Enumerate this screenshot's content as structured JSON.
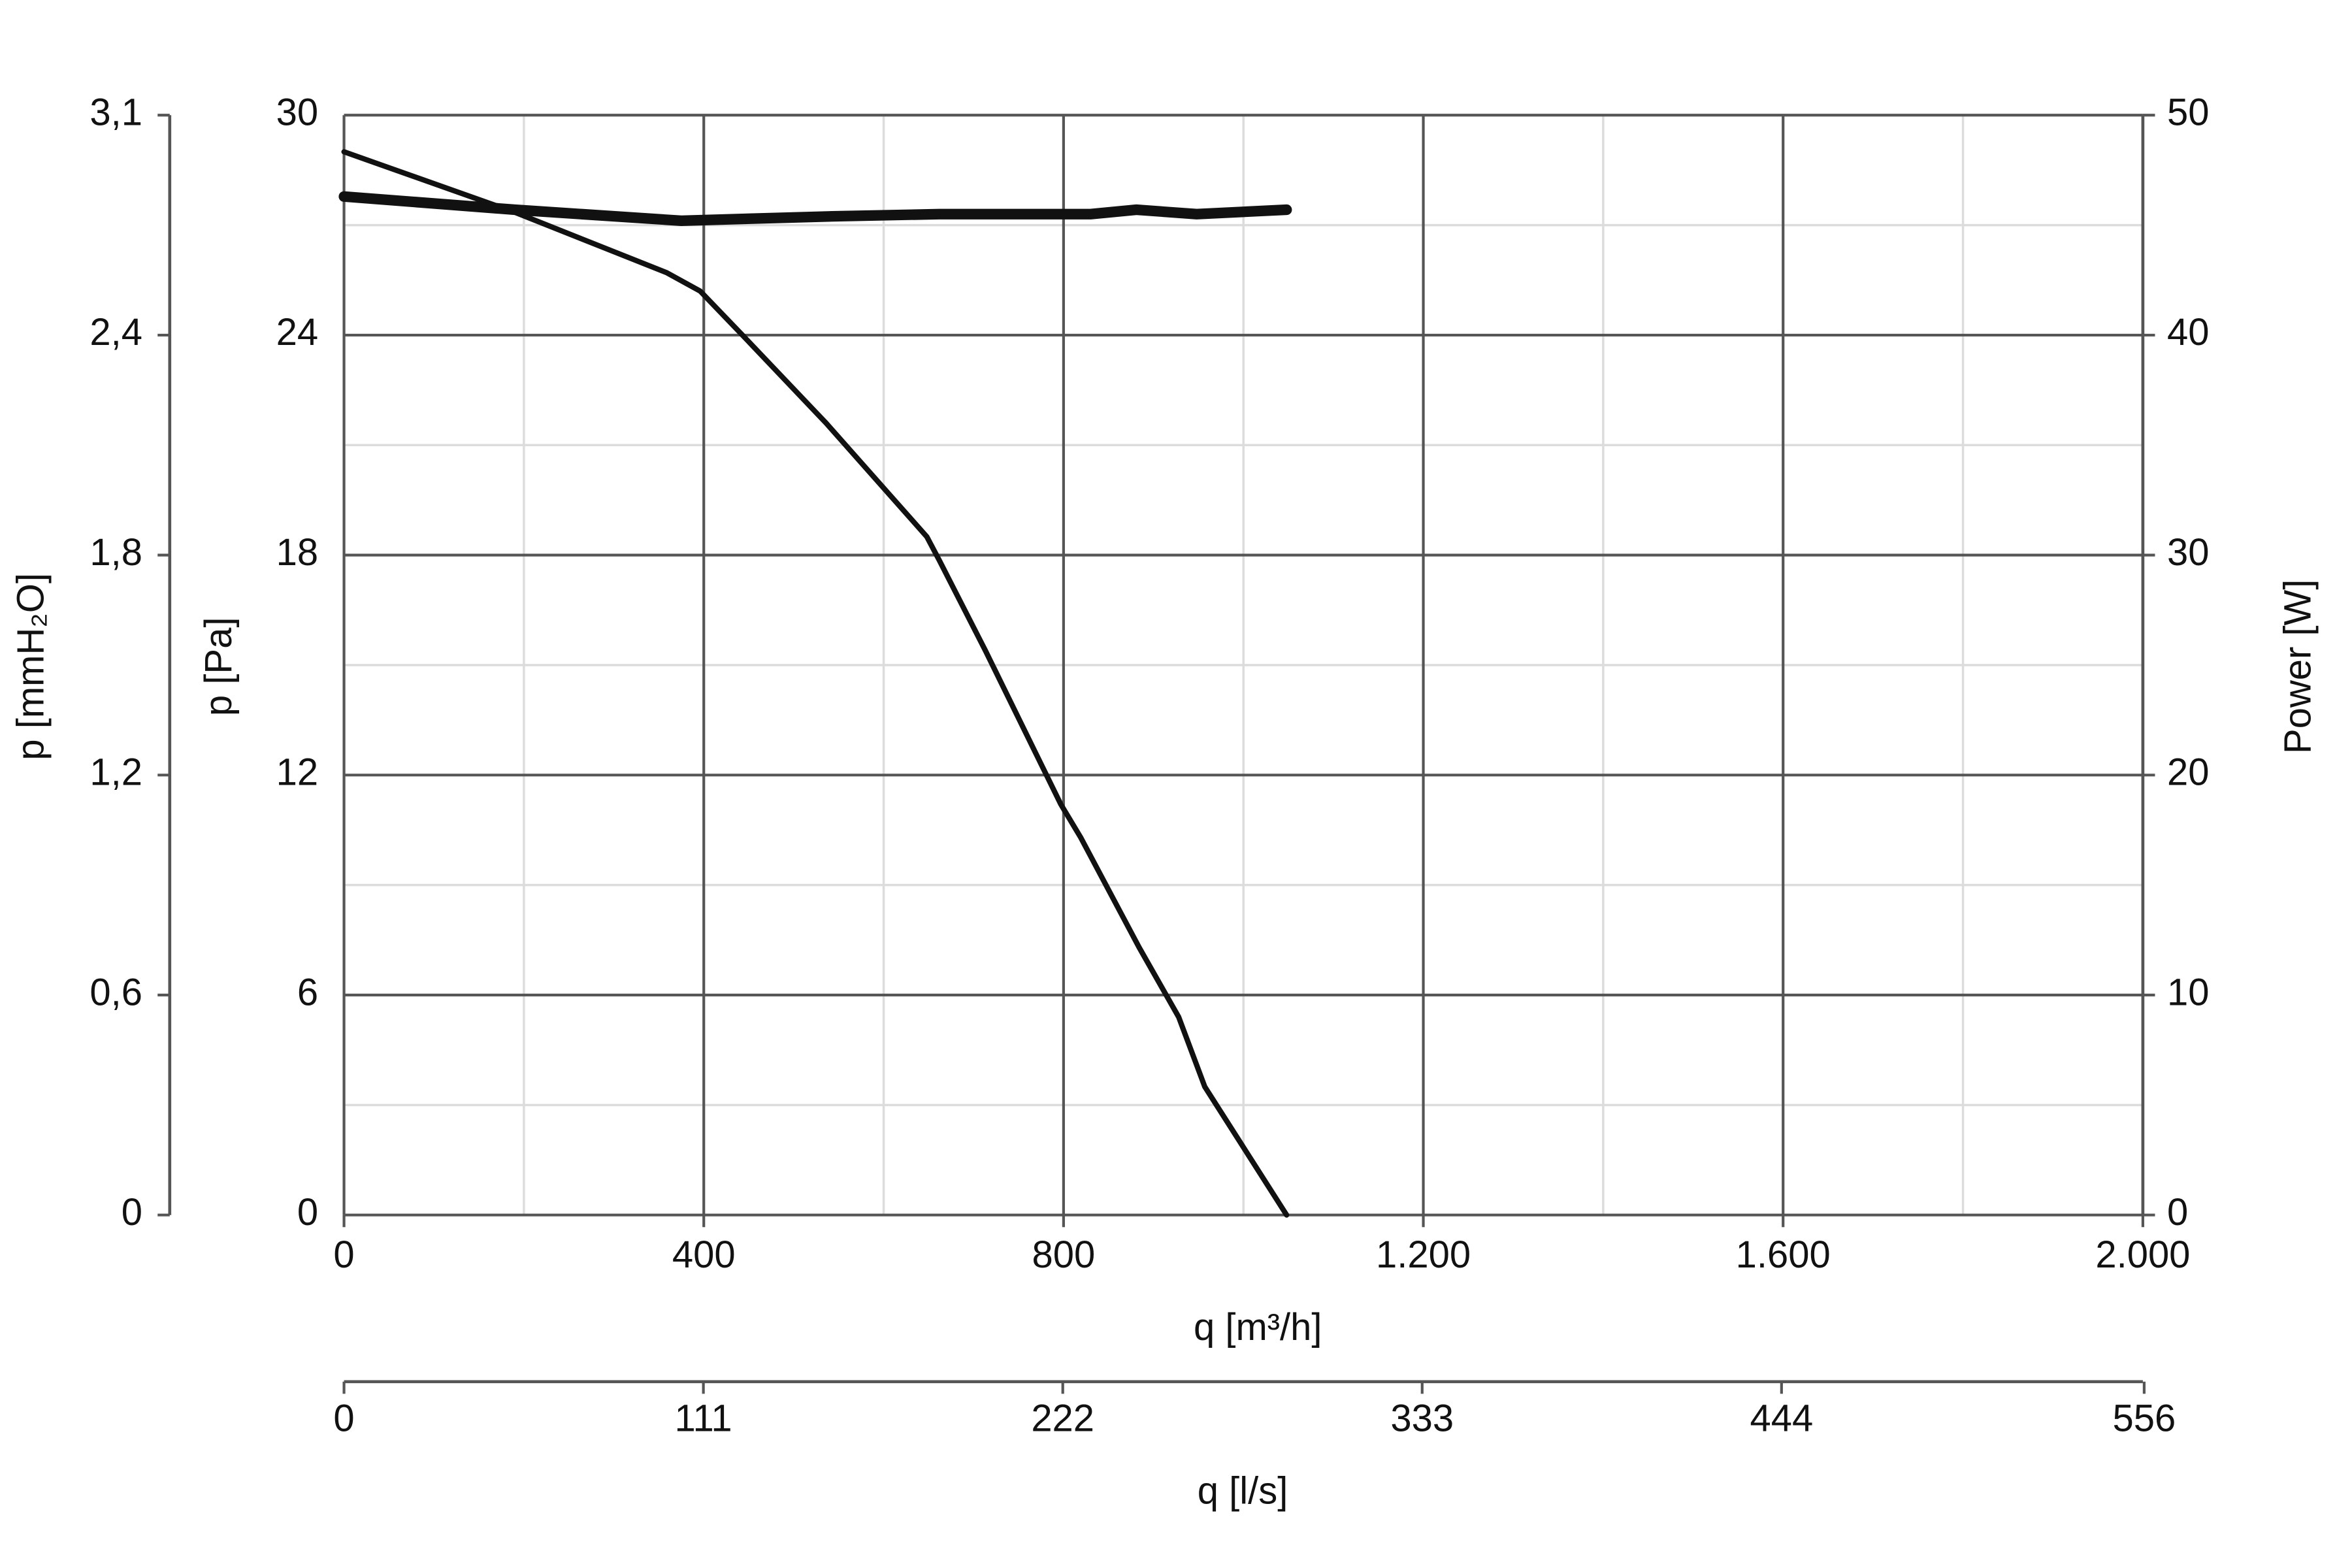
{
  "chart_data": {
    "type": "line",
    "xlabel": "q [m³/h]",
    "ylabel": "p [Pa]",
    "y2label": "Power [W]",
    "y3label": "p [mmH₂O]",
    "x2label": "q [l/s]",
    "xlim": [
      0,
      2000
    ],
    "xticks": [
      0,
      400,
      800,
      {
        "value": 1200,
        "label": "1.200"
      },
      {
        "value": 1600,
        "label": "1.600"
      },
      {
        "value": 2000,
        "label": "2.000"
      }
    ],
    "x2lim": [
      0,
      555.6
    ],
    "x2ticks": [
      0,
      111,
      222,
      333,
      444,
      556
    ],
    "ylim": [
      0,
      30
    ],
    "yticks": [
      0,
      6,
      12,
      18,
      24,
      30
    ],
    "y2lim": [
      0,
      50
    ],
    "y2ticks": [
      0,
      10,
      20,
      30,
      40,
      50
    ],
    "y3lim": [
      0,
      3.06
    ],
    "y3ticks": [
      0,
      {
        "value": 0.612,
        "label": "0,6"
      },
      {
        "value": 1.224,
        "label": "1,2"
      },
      {
        "value": 1.836,
        "label": "1,8"
      },
      {
        "value": 2.448,
        "label": "2,4"
      },
      {
        "value": 3.06,
        "label": "3,1"
      }
    ],
    "grid": true,
    "series": [
      {
        "color": "#111111",
        "axis": "y",
        "x": [
          0,
          190,
          359,
          396,
          443,
          536,
          648,
          662,
          713,
          797,
          819,
          884,
          928,
          957,
          1048
        ],
        "values": [
          29.0,
          27.35,
          25.7,
          25.2,
          24.0,
          21.6,
          18.5,
          17.85,
          15.4,
          11.2,
          10.3,
          7.3,
          5.4,
          3.5,
          0
        ]
      },
      {
        "color": "#111111",
        "axis": "y2",
        "x": [
          0,
          190,
          375,
          543,
          662,
          830,
          881,
          948,
          1048
        ],
        "values": [
          46.3,
          45.7,
          45.2,
          45.4,
          45.5,
          45.5,
          45.7,
          45.5,
          45.7
        ]
      }
    ]
  }
}
